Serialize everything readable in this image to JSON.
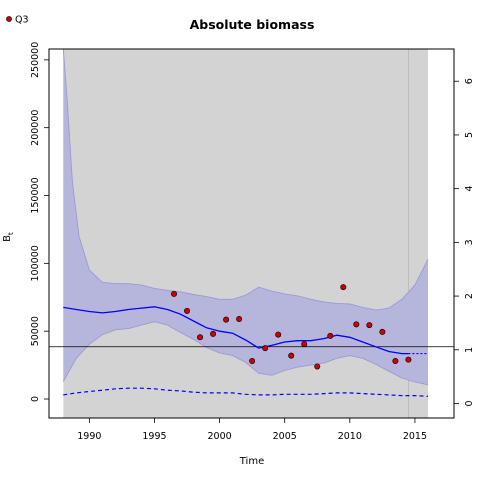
{
  "chart_data": {
    "type": "scatter",
    "title": "Absolute biomass",
    "xlabel": "Time",
    "ylabel": "B",
    "ylabel_subscript": "t",
    "xlim": [
      1986.9,
      2018.0
    ],
    "ylim": [
      -14000,
      258000
    ],
    "y2lim": [
      -0.27,
      6.6
    ],
    "x_ticks": [
      1990,
      1995,
      2000,
      2005,
      2010,
      2015
    ],
    "y_ticks": [
      0,
      50000,
      100000,
      150000,
      200000,
      250000
    ],
    "y2_ticks": [
      0,
      1,
      2,
      3,
      4,
      5,
      6
    ],
    "legend": {
      "label": "Q3",
      "position": "top-left",
      "marker_color": "#cc0000"
    },
    "colors": {
      "background_region": "#d3d3d3",
      "ci_fill": "#b4b4dc",
      "ci_line": "#9a9ad6",
      "estimate": "#0000ff",
      "points": "#cc0000",
      "reference": "#000000"
    },
    "last_observation_x": 2014.5,
    "bmsy": 38500,
    "observations": {
      "name": "Q3",
      "x": [
        1996.5,
        1997.5,
        1998.5,
        1999.5,
        2000.5,
        2001.5,
        2002.5,
        2003.5,
        2004.5,
        2005.5,
        2006.5,
        2007.5,
        2008.5,
        2009.5,
        2010.5,
        2011.5,
        2012.5,
        2013.5,
        2014.5
      ],
      "y": [
        77500,
        65000,
        45500,
        48000,
        58500,
        59000,
        28000,
        37500,
        47500,
        32000,
        40500,
        24000,
        46500,
        82500,
        55000,
        54500,
        49500,
        28000,
        29000
      ]
    },
    "estimate": {
      "x": [
        1988,
        1989,
        1990,
        1991,
        1992,
        1993,
        1994,
        1995,
        1996,
        1997,
        1998,
        1999,
        2000,
        2001,
        2002,
        2003,
        2004,
        2005,
        2006,
        2007,
        2008,
        2009,
        2010,
        2011,
        2012,
        2013,
        2014,
        2014.5
      ],
      "y": [
        67500,
        66000,
        64500,
        63500,
        64500,
        66000,
        67000,
        68000,
        66000,
        62500,
        57500,
        52500,
        50000,
        48500,
        43500,
        37500,
        39500,
        42000,
        43000,
        43000,
        44500,
        47000,
        45500,
        42000,
        38500,
        35000,
        33500,
        33500
      ]
    },
    "estimate_forecast": {
      "x": [
        2014.5,
        2015,
        2016
      ],
      "y": [
        33500,
        33500,
        33500
      ]
    },
    "ci_upper": {
      "x": [
        1988,
        1988.3,
        1988.7,
        1989.2,
        1990,
        1991,
        1992,
        1993,
        1994,
        1995,
        1996,
        1997,
        1998,
        1999,
        2000,
        2001,
        2002,
        2003,
        2004,
        2005,
        2006,
        2007,
        2008,
        2009,
        2010,
        2011,
        2012,
        2013,
        2014,
        2015,
        2016
      ],
      "y": [
        258000,
        220000,
        160000,
        120000,
        95000,
        86000,
        85000,
        85000,
        84000,
        81500,
        80000,
        79000,
        77000,
        75500,
        73500,
        73500,
        76500,
        82500,
        79500,
        77500,
        76000,
        73500,
        71500,
        70500,
        70000,
        67500,
        65500,
        67000,
        73500,
        84000,
        103000
      ]
    },
    "ci_lower": {
      "x": [
        1988,
        1989,
        1990,
        1991,
        1992,
        1993,
        1994,
        1995,
        1996,
        1997,
        1998,
        1999,
        2000,
        2001,
        2002,
        2003,
        2004,
        2005,
        2006,
        2007,
        2008,
        2009,
        2010,
        2011,
        2012,
        2013,
        2014,
        2015,
        2016
      ],
      "y": [
        13000,
        30000,
        40500,
        47500,
        51000,
        52000,
        54500,
        57000,
        54500,
        49000,
        44000,
        38000,
        34000,
        32000,
        27000,
        19000,
        17500,
        21000,
        23500,
        25000,
        26500,
        30000,
        32000,
        30000,
        25500,
        20500,
        15500,
        12500,
        10500
      ]
    },
    "lower_dashed": {
      "x": [
        1988,
        1989,
        1990,
        1991,
        1992,
        1993,
        1994,
        1995,
        1996,
        1997,
        1998,
        1999,
        2000,
        2001,
        2002,
        2003,
        2004,
        2005,
        2006,
        2007,
        2008,
        2009,
        2010,
        2011,
        2012,
        2013,
        2014,
        2015,
        2016
      ],
      "y": [
        3000,
        4500,
        5500,
        6500,
        7500,
        8000,
        8000,
        7500,
        6500,
        6000,
        5000,
        4500,
        4500,
        4500,
        3500,
        3000,
        3000,
        3500,
        3500,
        3500,
        4000,
        4500,
        4500,
        4000,
        3500,
        3000,
        2500,
        2500,
        2000
      ]
    }
  }
}
